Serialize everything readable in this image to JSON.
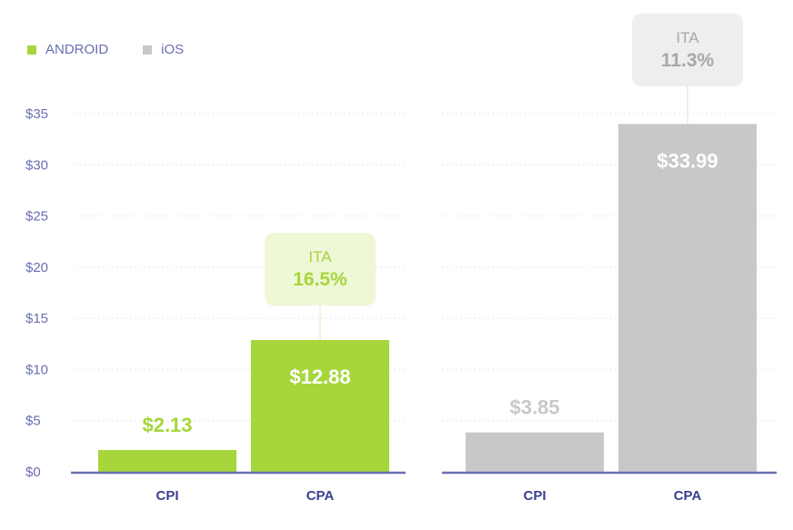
{
  "legend": [
    {
      "label": "ANDROID",
      "color": "#a6d63c"
    },
    {
      "label": "iOS",
      "color": "#c8c8c8"
    }
  ],
  "chart_data": {
    "type": "bar",
    "ylim": [
      0,
      35
    ],
    "y_ticks": [
      "$0",
      "$5",
      "$10",
      "$15",
      "$20",
      "$25",
      "$30",
      "$35"
    ],
    "grid": true,
    "legend_position": "top-left",
    "colors": {
      "ANDROID": "#a6d63c",
      "iOS": "#c8c8c8",
      "axis": "#6a6fb0"
    },
    "panels": [
      {
        "series_label": "ANDROID",
        "categories": [
          "CPI",
          "CPA"
        ],
        "values": [
          2.13,
          12.88
        ],
        "value_labels": [
          "$2.13",
          "$12.88"
        ],
        "callout": {
          "title": "ITA",
          "value": "16.5%",
          "category": "CPA"
        }
      },
      {
        "series_label": "iOS",
        "categories": [
          "CPI",
          "CPA"
        ],
        "values": [
          3.85,
          33.99
        ],
        "value_labels": [
          "$3.85",
          "$33.99"
        ],
        "callout": {
          "title": "ITA",
          "value": "11.3%",
          "category": "CPA"
        }
      }
    ]
  }
}
